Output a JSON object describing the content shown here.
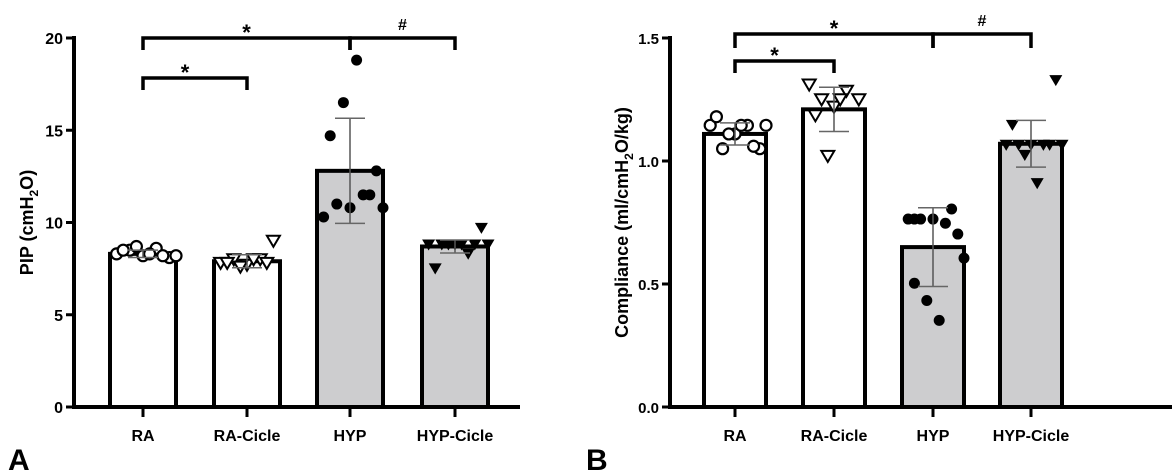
{
  "chart_data": [
    {
      "panel_label": "A",
      "type": "bar",
      "categories": [
        "RA",
        "RA-Cicle",
        "HYP",
        "HYP-Cicle"
      ],
      "ylabel": "PIP (cmH",
      "ylabel_sub": "2",
      "ylabel_end": "O)",
      "ylim": [
        0,
        20
      ],
      "yticks": [
        0,
        5,
        10,
        15,
        20
      ],
      "ytick_labels": [
        "0",
        "5",
        "10",
        "15",
        "20"
      ],
      "bar_fill": [
        "#ffffff",
        "#ffffff",
        "#cdcdcf",
        "#cdcdcf"
      ],
      "markers": [
        "open-circle",
        "open-triangle-down",
        "filled-circle",
        "filled-triangle-down"
      ],
      "means": [
        8.3,
        7.9,
        12.8,
        8.7
      ],
      "sd": [
        0.2,
        0.35,
        2.85,
        0.35
      ],
      "points": [
        [
          8.3,
          8.5,
          8.2,
          8.6,
          8.1,
          8.5,
          8.7,
          8.3,
          8.2,
          8.2
        ],
        [
          7.8,
          8.0,
          7.7,
          8.0,
          9.0,
          7.8,
          7.6,
          8.0,
          7.8
        ],
        [
          10.3,
          11.0,
          10.8,
          11.5,
          12.8,
          14.7,
          16.5,
          18.8,
          11.5,
          10.8
        ],
        [
          8.8,
          8.8,
          8.8,
          8.3,
          9.7,
          7.5,
          8.8,
          8.8,
          8.8,
          8.8
        ]
      ],
      "significance": [
        {
          "from": "RA",
          "to": "RA-Cicle",
          "label": "*"
        },
        {
          "from": "RA",
          "to": "HYP",
          "label": "*"
        },
        {
          "from": "HYP",
          "to": "HYP-Cicle",
          "label": "#"
        }
      ]
    },
    {
      "panel_label": "B",
      "type": "bar",
      "categories": [
        "RA",
        "RA-Cicle",
        "HYP",
        "HYP-Cicle"
      ],
      "ylabel": "Compliance (ml/cmH",
      "ylabel_sub": "2",
      "ylabel_end": "O/kg)",
      "ylim": [
        0,
        1.5
      ],
      "yticks": [
        0,
        0.5,
        1.0,
        1.5
      ],
      "ytick_labels": [
        "0.0",
        "0.5",
        "1.0",
        "1.5"
      ],
      "bar_fill": [
        "#ffffff",
        "#ffffff",
        "#cdcdcf",
        "#cdcdcf"
      ],
      "markers": [
        "open-circle",
        "open-triangle-down",
        "filled-circle",
        "filled-triangle-down"
      ],
      "means": [
        1.11,
        1.21,
        0.65,
        1.07
      ],
      "sd": [
        0.045,
        0.09,
        0.16,
        0.095
      ],
      "points": [
        [
          1.145,
          1.05,
          1.11,
          1.145,
          1.05,
          1.18,
          1.11,
          1.145,
          1.06,
          1.145
        ],
        [
          1.31,
          1.25,
          1.22,
          1.285,
          1.25,
          1.185,
          1.02,
          1.25
        ],
        [
          0.764,
          0.764,
          0.764,
          0.747,
          0.703,
          0.503,
          0.433,
          0.352,
          0.805,
          0.605,
          0.764
        ],
        [
          1.065,
          1.065,
          1.065,
          1.065,
          1.328,
          1.146,
          1.024,
          0.909,
          1.065,
          1.065
        ]
      ],
      "significance": [
        {
          "from": "RA",
          "to": "RA-Cicle",
          "label": "*"
        },
        {
          "from": "RA",
          "to": "HYP",
          "label": "*"
        },
        {
          "from": "HYP",
          "to": "HYP-Cicle",
          "label": "#"
        }
      ]
    }
  ]
}
